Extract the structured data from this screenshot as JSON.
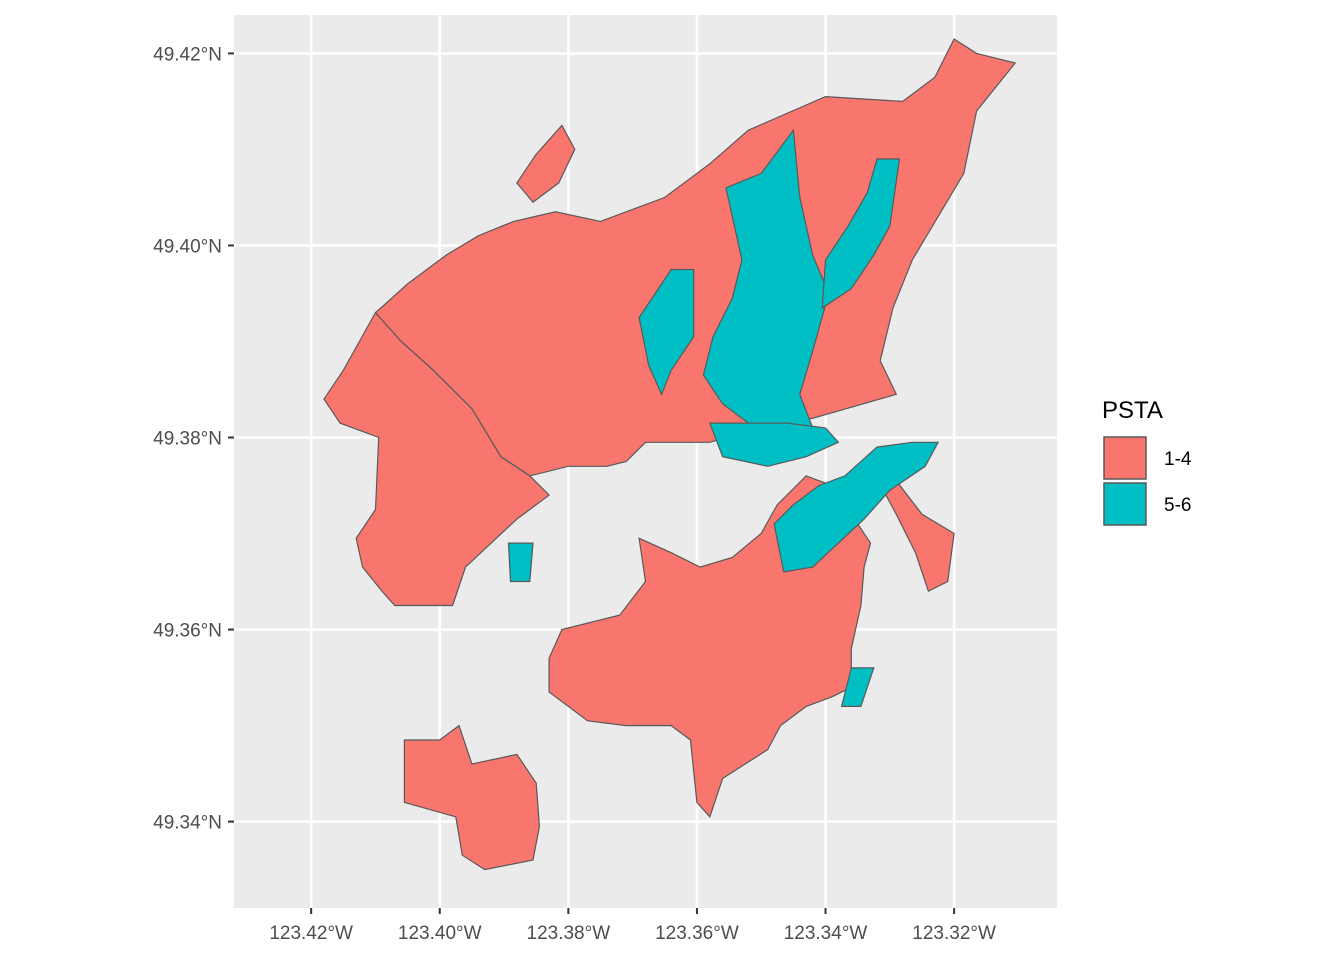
{
  "chart_data": {
    "type": "map",
    "title": "",
    "xlabel": "",
    "ylabel": "",
    "fill_variable": "PSTA",
    "xlim": [
      -123.432,
      -123.304
    ],
    "ylim": [
      49.331,
      49.424
    ],
    "x_ticks": [
      {
        "value": -123.42,
        "label": "123.42°W"
      },
      {
        "value": -123.4,
        "label": "123.40°W"
      },
      {
        "value": -123.38,
        "label": "123.38°W"
      },
      {
        "value": -123.36,
        "label": "123.36°W"
      },
      {
        "value": -123.34,
        "label": "123.34°W"
      },
      {
        "value": -123.32,
        "label": "123.32°W"
      }
    ],
    "y_ticks": [
      {
        "value": 49.42,
        "label": "49.42°N"
      },
      {
        "value": 49.4,
        "label": "49.40°N"
      },
      {
        "value": 49.38,
        "label": "49.38°N"
      },
      {
        "value": 49.36,
        "label": "49.36°N"
      },
      {
        "value": 49.34,
        "label": "49.34°N"
      }
    ],
    "grid": true,
    "legend": {
      "title": "PSTA",
      "placement": "right",
      "entries": [
        {
          "label": "1-4",
          "color": "#f8766d"
        },
        {
          "label": "5-6",
          "color": "#00bfc4"
        }
      ]
    },
    "regions": [
      {
        "name": "region-1-4-north-main",
        "category": "1-4",
        "coords": [
          [
            -123.375,
            49.4025
          ],
          [
            -123.365,
            49.405
          ],
          [
            -123.358,
            49.4085
          ],
          [
            -123.352,
            49.412
          ],
          [
            -123.34,
            49.4155
          ],
          [
            -123.328,
            49.415
          ],
          [
            -123.323,
            49.4175
          ],
          [
            -123.32,
            49.4215
          ],
          [
            -123.3165,
            49.42
          ],
          [
            -123.3105,
            49.419
          ],
          [
            -123.3165,
            49.414
          ],
          [
            -123.3185,
            49.4075
          ],
          [
            -123.3225,
            49.403
          ],
          [
            -123.3265,
            49.3985
          ],
          [
            -123.3295,
            49.3935
          ],
          [
            -123.3315,
            49.388
          ],
          [
            -123.329,
            49.3845
          ],
          [
            -123.342,
            49.382
          ],
          [
            -123.35,
            49.381
          ],
          [
            -123.358,
            49.3795
          ],
          [
            -123.365,
            49.3795
          ],
          [
            -123.368,
            49.3795
          ],
          [
            -123.371,
            49.3775
          ],
          [
            -123.374,
            49.377
          ],
          [
            -123.38,
            49.377
          ],
          [
            -123.386,
            49.376
          ],
          [
            -123.3905,
            49.378
          ],
          [
            -123.395,
            49.383
          ],
          [
            -123.401,
            49.387
          ],
          [
            -123.406,
            49.39
          ],
          [
            -123.41,
            49.393
          ],
          [
            -123.405,
            49.396
          ],
          [
            -123.399,
            49.399
          ],
          [
            -123.394,
            49.401
          ],
          [
            -123.3885,
            49.4025
          ],
          [
            -123.382,
            49.4035
          ]
        ]
      },
      {
        "name": "region-1-4-west-lobe",
        "category": "1-4",
        "coords": [
          [
            -123.41,
            49.393
          ],
          [
            -123.406,
            49.39
          ],
          [
            -123.401,
            49.387
          ],
          [
            -123.395,
            49.383
          ],
          [
            -123.3905,
            49.378
          ],
          [
            -123.386,
            49.376
          ],
          [
            -123.383,
            49.374
          ],
          [
            -123.388,
            49.3715
          ],
          [
            -123.392,
            49.369
          ],
          [
            -123.396,
            49.3665
          ],
          [
            -123.398,
            49.3625
          ],
          [
            -123.407,
            49.3625
          ],
          [
            -123.409,
            49.364
          ],
          [
            -123.412,
            49.3665
          ],
          [
            -123.413,
            49.3695
          ],
          [
            -123.41,
            49.3725
          ],
          [
            -123.4095,
            49.38
          ],
          [
            -123.4155,
            49.3815
          ],
          [
            -123.418,
            49.384
          ],
          [
            -123.415,
            49.387
          ],
          [
            -123.4125,
            49.39
          ]
        ]
      },
      {
        "name": "region-1-4-northwest-islet",
        "category": "1-4",
        "coords": [
          [
            -123.388,
            49.4065
          ],
          [
            -123.385,
            49.4095
          ],
          [
            -123.381,
            49.4125
          ],
          [
            -123.379,
            49.41
          ],
          [
            -123.3815,
            49.4065
          ],
          [
            -123.3855,
            49.4045
          ]
        ]
      },
      {
        "name": "region-1-4-south-central",
        "category": "1-4",
        "coords": [
          [
            -123.369,
            49.3695
          ],
          [
            -123.368,
            49.365
          ],
          [
            -123.372,
            49.3615
          ],
          [
            -123.381,
            49.36
          ],
          [
            -123.383,
            49.357
          ],
          [
            -123.383,
            49.3535
          ],
          [
            -123.377,
            49.3505
          ],
          [
            -123.371,
            49.35
          ],
          [
            -123.364,
            49.35
          ],
          [
            -123.361,
            49.3485
          ],
          [
            -123.36,
            49.342
          ],
          [
            -123.358,
            49.3405
          ],
          [
            -123.356,
            49.3445
          ],
          [
            -123.349,
            49.3475
          ],
          [
            -123.347,
            49.35
          ],
          [
            -123.343,
            49.352
          ],
          [
            -123.339,
            49.353
          ],
          [
            -123.336,
            49.354
          ],
          [
            -123.336,
            49.358
          ],
          [
            -123.3345,
            49.3625
          ],
          [
            -123.334,
            49.3665
          ],
          [
            -123.333,
            49.369
          ],
          [
            -123.336,
            49.372
          ],
          [
            -123.339,
            49.375
          ],
          [
            -123.343,
            49.376
          ],
          [
            -123.3475,
            49.373
          ],
          [
            -123.35,
            49.37
          ],
          [
            -123.3545,
            49.3675
          ],
          [
            -123.3595,
            49.3665
          ],
          [
            -123.364,
            49.368
          ]
        ]
      },
      {
        "name": "region-1-4-southwest",
        "category": "1-4",
        "coords": [
          [
            -123.4055,
            49.3485
          ],
          [
            -123.4,
            49.3485
          ],
          [
            -123.397,
            49.35
          ],
          [
            -123.395,
            49.346
          ],
          [
            -123.388,
            49.347
          ],
          [
            -123.385,
            49.344
          ],
          [
            -123.3845,
            49.3395
          ],
          [
            -123.3855,
            49.336
          ],
          [
            -123.393,
            49.335
          ],
          [
            -123.3965,
            49.3365
          ],
          [
            -123.3975,
            49.3405
          ],
          [
            -123.4055,
            49.342
          ]
        ]
      },
      {
        "name": "region-1-4-east-strip",
        "category": "1-4",
        "coords": [
          [
            -123.32,
            49.37
          ],
          [
            -123.325,
            49.372
          ],
          [
            -123.329,
            49.3755
          ],
          [
            -123.331,
            49.3745
          ],
          [
            -123.329,
            49.372
          ],
          [
            -123.326,
            49.368
          ],
          [
            -123.324,
            49.364
          ],
          [
            -123.321,
            49.365
          ]
        ]
      },
      {
        "name": "region-5-6-central-north",
        "category": "5-6",
        "coords": [
          [
            -123.3555,
            49.406
          ],
          [
            -123.35,
            49.4075
          ],
          [
            -123.345,
            49.412
          ],
          [
            -123.344,
            49.405
          ],
          [
            -123.342,
            49.399
          ],
          [
            -123.3395,
            49.395
          ],
          [
            -123.342,
            49.389
          ],
          [
            -123.344,
            49.3845
          ],
          [
            -123.342,
            49.381
          ],
          [
            -123.347,
            49.38
          ],
          [
            -123.352,
            49.3815
          ],
          [
            -123.356,
            49.3835
          ],
          [
            -123.359,
            49.3865
          ],
          [
            -123.3575,
            49.3905
          ],
          [
            -123.3545,
            49.3945
          ],
          [
            -123.353,
            49.3985
          ]
        ]
      },
      {
        "name": "region-5-6-west-patch",
        "category": "5-6",
        "coords": [
          [
            -123.364,
            49.3975
          ],
          [
            -123.3605,
            49.3975
          ],
          [
            -123.3605,
            49.3905
          ],
          [
            -123.364,
            49.387
          ],
          [
            -123.3655,
            49.3845
          ],
          [
            -123.3675,
            49.3875
          ],
          [
            -123.369,
            49.3925
          ]
        ]
      },
      {
        "name": "region-5-6-east-arm",
        "category": "5-6",
        "coords": [
          [
            -123.332,
            49.409
          ],
          [
            -123.3285,
            49.409
          ],
          [
            -123.33,
            49.402
          ],
          [
            -123.3325,
            49.399
          ],
          [
            -123.336,
            49.3955
          ],
          [
            -123.3405,
            49.3935
          ],
          [
            -123.34,
            49.3985
          ],
          [
            -123.3365,
            49.402
          ],
          [
            -123.3335,
            49.4055
          ]
        ]
      },
      {
        "name": "region-5-6-center-band",
        "category": "5-6",
        "coords": [
          [
            -123.358,
            49.3815
          ],
          [
            -123.352,
            49.3815
          ],
          [
            -123.346,
            49.3815
          ],
          [
            -123.34,
            49.381
          ],
          [
            -123.338,
            49.3795
          ],
          [
            -123.343,
            49.378
          ],
          [
            -123.349,
            49.377
          ],
          [
            -123.356,
            49.378
          ]
        ]
      },
      {
        "name": "region-5-6-south-east",
        "category": "5-6",
        "coords": [
          [
            -123.348,
            49.371
          ],
          [
            -123.345,
            49.373
          ],
          [
            -123.341,
            49.375
          ],
          [
            -123.337,
            49.376
          ],
          [
            -123.332,
            49.379
          ],
          [
            -123.3265,
            49.3795
          ],
          [
            -123.3225,
            49.3795
          ],
          [
            -123.3245,
            49.377
          ],
          [
            -123.33,
            49.3745
          ],
          [
            -123.334,
            49.3715
          ],
          [
            -123.338,
            49.369
          ],
          [
            -123.342,
            49.3665
          ],
          [
            -123.3465,
            49.366
          ]
        ]
      },
      {
        "name": "region-5-6-southwest-patch",
        "category": "5-6",
        "coords": [
          [
            -123.3893,
            49.369
          ],
          [
            -123.3855,
            49.369
          ],
          [
            -123.386,
            49.365
          ],
          [
            -123.389,
            49.365
          ]
        ]
      },
      {
        "name": "region-5-6-south-tip",
        "category": "5-6",
        "coords": [
          [
            -123.336,
            49.356
          ],
          [
            -123.3325,
            49.356
          ],
          [
            -123.3345,
            49.352
          ],
          [
            -123.3375,
            49.352
          ]
        ]
      }
    ]
  }
}
